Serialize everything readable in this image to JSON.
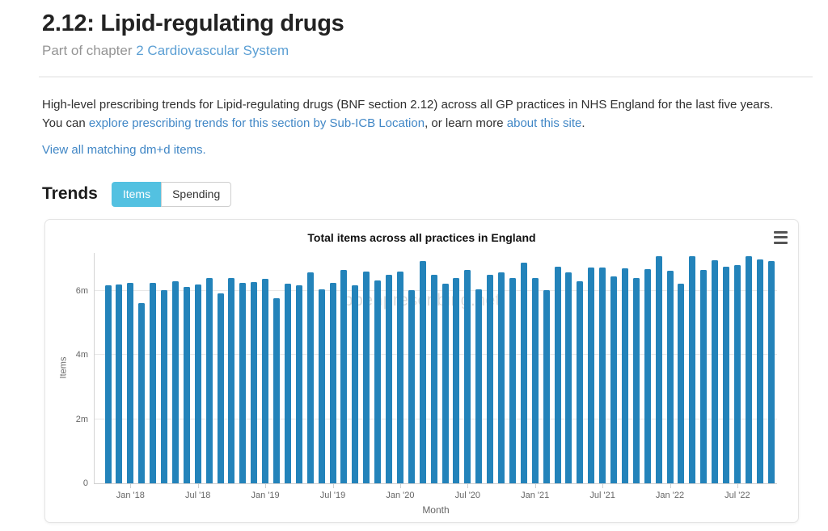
{
  "page": {
    "title": "2.12: Lipid-regulating drugs",
    "subtitle_prefix": "Part of chapter ",
    "chapter_link": "2 Cardiovascular System",
    "intro": {
      "text_1": "High-level prescribing trends for Lipid-regulating drugs (BNF section 2.12) across all GP practices in NHS England for the last five years. You can ",
      "link_1": "explore prescribing trends for this section by Sub-ICB Location",
      "text_2": ", or learn more ",
      "link_2": "about this site",
      "text_3": "."
    },
    "dmd_link": "View all matching dm+d items."
  },
  "trends": {
    "heading": "Trends",
    "tabs": [
      {
        "label": "Items",
        "active": true
      },
      {
        "label": "Spending",
        "active": false
      }
    ]
  },
  "colors": {
    "link": "#4187c6",
    "chapter_link": "#5b9fd4",
    "tab_active_bg": "#53c1e1",
    "tab_active_text": "#ffffff",
    "bar": "#2383ba",
    "axis_text": "#666666",
    "watermark_text": "#dcdcdc"
  },
  "chart_data": {
    "type": "bar",
    "title": "Total items across all practices in England",
    "xlabel": "Month",
    "ylabel": "Items",
    "watermark": "openprescribing.net",
    "unit": "millions of items",
    "ylim": [
      0,
      7.2
    ],
    "grid": true,
    "legend": "none",
    "bar_color": "#2383ba",
    "x": [
      "Nov 2017",
      "Dec 2017",
      "Jan 2018",
      "Feb 2018",
      "Mar 2018",
      "Apr 2018",
      "May 2018",
      "Jun 2018",
      "Jul 2018",
      "Aug 2018",
      "Sep 2018",
      "Oct 2018",
      "Nov 2018",
      "Dec 2018",
      "Jan 2019",
      "Feb 2019",
      "Mar 2019",
      "Apr 2019",
      "May 2019",
      "Jun 2019",
      "Jul 2019",
      "Aug 2019",
      "Sep 2019",
      "Oct 2019",
      "Nov 2019",
      "Dec 2019",
      "Jan 2020",
      "Feb 2020",
      "Mar 2020",
      "Apr 2020",
      "May 2020",
      "Jun 2020",
      "Jul 2020",
      "Aug 2020",
      "Sep 2020",
      "Oct 2020",
      "Nov 2020",
      "Dec 2020",
      "Jan 2021",
      "Feb 2021",
      "Mar 2021",
      "Apr 2021",
      "May 2021",
      "Jun 2021",
      "Jul 2021",
      "Aug 2021",
      "Sep 2021",
      "Oct 2021",
      "Nov 2021",
      "Dec 2021",
      "Jan 2022",
      "Feb 2022",
      "Mar 2022",
      "Apr 2022",
      "May 2022",
      "Jun 2022",
      "Jul 2022",
      "Aug 2022",
      "Sep 2022",
      "Oct 2022"
    ],
    "values": [
      6.19,
      6.21,
      6.27,
      5.62,
      6.25,
      6.04,
      6.31,
      6.14,
      6.2,
      6.4,
      5.93,
      6.42,
      6.27,
      6.29,
      6.38,
      5.77,
      6.23,
      6.19,
      6.58,
      6.06,
      6.27,
      6.67,
      6.19,
      6.6,
      6.34,
      6.51,
      6.6,
      6.04,
      6.93,
      6.52,
      6.24,
      6.42,
      6.67,
      6.06,
      6.52,
      6.59,
      6.4,
      6.88,
      6.42,
      6.03,
      6.76,
      6.59,
      6.3,
      6.74,
      6.74,
      6.45,
      6.71,
      6.42,
      6.69,
      7.08,
      6.63,
      6.23,
      7.08,
      6.67,
      6.97,
      6.77,
      6.82,
      7.09,
      6.99,
      6.93
    ],
    "y_ticks": [
      {
        "value": 0,
        "label": "0"
      },
      {
        "value": 2,
        "label": "2m"
      },
      {
        "value": 4,
        "label": "4m"
      },
      {
        "value": 6,
        "label": "6m"
      }
    ],
    "x_ticks": [
      {
        "index": 2,
        "label": "Jan '18"
      },
      {
        "index": 8,
        "label": "Jul '18"
      },
      {
        "index": 14,
        "label": "Jan '19"
      },
      {
        "index": 20,
        "label": "Jul '19"
      },
      {
        "index": 26,
        "label": "Jan '20"
      },
      {
        "index": 32,
        "label": "Jul '20"
      },
      {
        "index": 38,
        "label": "Jan '21"
      },
      {
        "index": 44,
        "label": "Jul '21"
      },
      {
        "index": 50,
        "label": "Jan '22"
      },
      {
        "index": 56,
        "label": "Jul '22"
      }
    ]
  }
}
